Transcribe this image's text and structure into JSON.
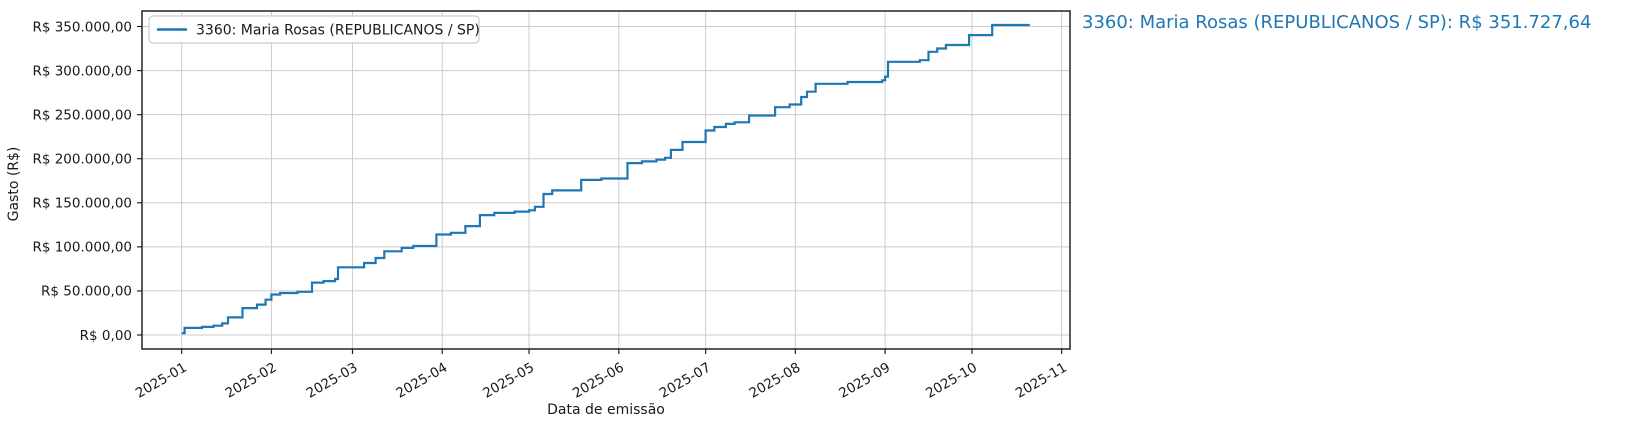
{
  "colors": {
    "line": "#1f77b4",
    "grid": "#cccccc",
    "spine": "#222222",
    "text": "#1a1a1a",
    "annotation": "#1f77b4",
    "legend_border": "#cccccc",
    "background": "#ffffff"
  },
  "annotation": {
    "text": "3360: Maria Rosas (REPUBLICANOS / SP): R$ 351.727,64"
  },
  "chart_data": {
    "type": "line",
    "line_style": "step-after",
    "title": "",
    "xlabel": "Data de emissão",
    "ylabel": "Gasto (R$)",
    "grid": true,
    "legend_position": "upper left",
    "x_domain": [
      "2024-12-18",
      "2025-11-04"
    ],
    "ylim": [
      -16000,
      368000
    ],
    "x_ticks": [
      {
        "date": "2025-01-01",
        "label": "2025-01"
      },
      {
        "date": "2025-02-01",
        "label": "2025-02"
      },
      {
        "date": "2025-03-01",
        "label": "2025-03"
      },
      {
        "date": "2025-04-01",
        "label": "2025-04"
      },
      {
        "date": "2025-05-01",
        "label": "2025-05"
      },
      {
        "date": "2025-06-01",
        "label": "2025-06"
      },
      {
        "date": "2025-07-01",
        "label": "2025-07"
      },
      {
        "date": "2025-08-01",
        "label": "2025-08"
      },
      {
        "date": "2025-09-01",
        "label": "2025-09"
      },
      {
        "date": "2025-10-01",
        "label": "2025-10"
      },
      {
        "date": "2025-11-01",
        "label": "2025-11"
      }
    ],
    "y_ticks": [
      {
        "value": 0,
        "label": "R$ 0,00"
      },
      {
        "value": 50000,
        "label": "R$ 50.000,00"
      },
      {
        "value": 100000,
        "label": "R$ 100.000,00"
      },
      {
        "value": 150000,
        "label": "R$ 150.000,00"
      },
      {
        "value": 200000,
        "label": "R$ 200.000,00"
      },
      {
        "value": 250000,
        "label": "R$ 250.000,00"
      },
      {
        "value": 300000,
        "label": "R$ 300.000,00"
      },
      {
        "value": 350000,
        "label": "R$ 350.000,00"
      }
    ],
    "series": [
      {
        "name": "3360: Maria Rosas (REPUBLICANOS / SP)",
        "color": "#1f77b4",
        "final_value": 351727.64,
        "final_value_label": "R$ 351.727,64",
        "points": [
          [
            "2025-01-01",
            2000
          ],
          [
            "2025-01-02",
            8000
          ],
          [
            "2025-01-08",
            9200
          ],
          [
            "2025-01-12",
            10500
          ],
          [
            "2025-01-15",
            13200
          ],
          [
            "2025-01-17",
            20000
          ],
          [
            "2025-01-22",
            30500
          ],
          [
            "2025-01-27",
            34500
          ],
          [
            "2025-01-30",
            40000
          ],
          [
            "2025-02-01",
            46000
          ],
          [
            "2025-02-04",
            47600
          ],
          [
            "2025-02-10",
            49000
          ],
          [
            "2025-02-15",
            59500
          ],
          [
            "2025-02-19",
            61200
          ],
          [
            "2025-02-23",
            63500
          ],
          [
            "2025-02-24",
            76800
          ],
          [
            "2025-03-05",
            81700
          ],
          [
            "2025-03-09",
            87400
          ],
          [
            "2025-03-12",
            95000
          ],
          [
            "2025-03-18",
            98800
          ],
          [
            "2025-03-22",
            101000
          ],
          [
            "2025-03-30",
            114000
          ],
          [
            "2025-04-04",
            116000
          ],
          [
            "2025-04-09",
            123500
          ],
          [
            "2025-04-14",
            136000
          ],
          [
            "2025-04-19",
            138500
          ],
          [
            "2025-04-26",
            140000
          ],
          [
            "2025-05-01",
            141500
          ],
          [
            "2025-05-03",
            145500
          ],
          [
            "2025-05-06",
            160000
          ],
          [
            "2025-05-09",
            164000
          ],
          [
            "2025-05-19",
            176000
          ],
          [
            "2025-05-26",
            177500
          ],
          [
            "2025-06-04",
            195000
          ],
          [
            "2025-06-09",
            197000
          ],
          [
            "2025-06-14",
            199000
          ],
          [
            "2025-06-17",
            201000
          ],
          [
            "2025-06-19",
            210000
          ],
          [
            "2025-06-23",
            219000
          ],
          [
            "2025-07-01",
            232000
          ],
          [
            "2025-07-04",
            236000
          ],
          [
            "2025-07-08",
            239500
          ],
          [
            "2025-07-11",
            241300
          ],
          [
            "2025-07-16",
            249000
          ],
          [
            "2025-07-25",
            258400
          ],
          [
            "2025-07-30",
            261500
          ],
          [
            "2025-08-03",
            270000
          ],
          [
            "2025-08-05",
            276000
          ],
          [
            "2025-08-08",
            285000
          ],
          [
            "2025-08-19",
            287000
          ],
          [
            "2025-08-31",
            289000
          ],
          [
            "2025-09-01",
            293000
          ],
          [
            "2025-09-02",
            310000
          ],
          [
            "2025-09-13",
            311800
          ],
          [
            "2025-09-16",
            321300
          ],
          [
            "2025-09-19",
            325000
          ],
          [
            "2025-09-22",
            329000
          ],
          [
            "2025-09-30",
            340200
          ],
          [
            "2025-10-08",
            351727.64
          ],
          [
            "2025-10-21",
            351727.64
          ]
        ]
      }
    ]
  }
}
